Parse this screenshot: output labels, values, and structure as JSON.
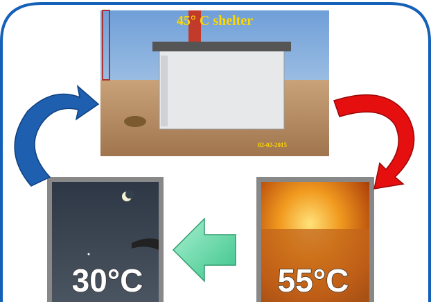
{
  "photo": {
    "caption": "45° C shelter",
    "date": "02-02-2015"
  },
  "night": {
    "label": "30°C"
  },
  "day": {
    "label": "55°C"
  }
}
